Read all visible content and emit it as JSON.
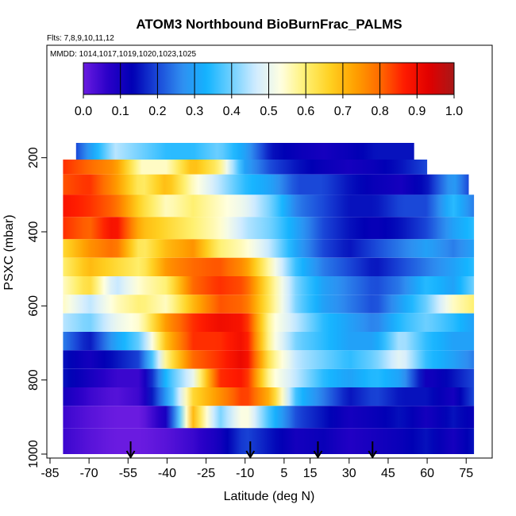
{
  "chart_data": {
    "type": "heatmap",
    "title": "ATOM3 Northbound BioBurnFrac_PALMS",
    "subtitle_flights": "Flts: 7,8,9,10,11,12",
    "subtitle_dates": "MMDD: 1014,1017,1019,1020,1023,1025",
    "xlabel": "Latitude (deg N)",
    "ylabel": "PSXC (mbar)",
    "xlim": [
      -85,
      85
    ],
    "ylim": [
      1000,
      100
    ],
    "x_ticks": [
      "-85",
      "-70",
      "-55",
      "-40",
      "-25",
      "-10",
      "5",
      "15",
      "30",
      "45",
      "60",
      "75"
    ],
    "y_ticks": [
      "200",
      "400",
      "600",
      "800",
      "1000"
    ],
    "colorbar": {
      "min": 0.0,
      "max": 1.0,
      "tick_labels": [
        "0.0",
        "0.1",
        "0.2",
        "0.3",
        "0.4",
        "0.5",
        "0.6",
        "0.7",
        "0.8",
        "0.9",
        "1.0"
      ],
      "colors": [
        "#6a1be0",
        "#2a00c8",
        "#0000b4",
        "#1a48d8",
        "#2f8ef0",
        "#14b4ff",
        "#70d0ff",
        "#d2ecff",
        "#ffffe0",
        "#fff070",
        "#ffd020",
        "#ffa000",
        "#ff6a00",
        "#ff1a00",
        "#e00000",
        "#a81818"
      ]
    },
    "grid": false,
    "vertical_profile_markers_lat": [
      -54,
      -8,
      18,
      39
    ],
    "bands": [
      {
        "p_top": 160,
        "p_bot": 205,
        "x": [
          -75,
          -60,
          -50,
          -40,
          -30,
          -20,
          -10,
          0,
          10,
          20,
          30,
          40,
          55
        ],
        "v": [
          0.2,
          0.45,
          0.4,
          0.35,
          0.35,
          0.4,
          0.3,
          0.15,
          0.12,
          0.1,
          0.12,
          0.15,
          0.15
        ]
      },
      {
        "p_top": 205,
        "p_bot": 245,
        "x": [
          -80,
          -70,
          -60,
          -50,
          -40,
          -30,
          -20,
          -10,
          0,
          10,
          20,
          30,
          40,
          50,
          60
        ],
        "v": [
          0.85,
          0.8,
          0.75,
          0.55,
          0.55,
          0.7,
          0.6,
          0.3,
          0.2,
          0.15,
          0.12,
          0.1,
          0.12,
          0.15,
          0.2
        ]
      },
      {
        "p_top": 245,
        "p_bot": 300,
        "x": [
          -80,
          -70,
          -60,
          -50,
          -40,
          -30,
          -20,
          -10,
          0,
          10,
          20,
          30,
          40,
          50,
          60,
          70,
          76
        ],
        "v": [
          0.82,
          0.85,
          0.75,
          0.6,
          0.7,
          0.55,
          0.45,
          0.35,
          0.3,
          0.2,
          0.2,
          0.15,
          0.12,
          0.1,
          0.15,
          0.3,
          0.2
        ]
      },
      {
        "p_top": 300,
        "p_bot": 360,
        "x": [
          -80,
          -70,
          -60,
          -50,
          -40,
          -30,
          -20,
          -10,
          0,
          10,
          20,
          30,
          40,
          50,
          60,
          70,
          78
        ],
        "v": [
          0.88,
          0.85,
          0.8,
          0.65,
          0.55,
          0.6,
          0.55,
          0.5,
          0.4,
          0.25,
          0.2,
          0.15,
          0.15,
          0.2,
          0.2,
          0.35,
          0.25
        ]
      },
      {
        "p_top": 360,
        "p_bot": 420,
        "x": [
          -80,
          -70,
          -60,
          -50,
          -40,
          -30,
          -20,
          -10,
          0,
          10,
          20,
          30,
          40,
          50,
          60,
          70,
          78
        ],
        "v": [
          0.85,
          0.8,
          0.9,
          0.7,
          0.65,
          0.6,
          0.55,
          0.45,
          0.4,
          0.3,
          0.2,
          0.15,
          0.12,
          0.15,
          0.2,
          0.3,
          0.35
        ]
      },
      {
        "p_top": 420,
        "p_bot": 470,
        "x": [
          -80,
          -70,
          -60,
          -50,
          -40,
          -30,
          -20,
          -10,
          0,
          10,
          20,
          30,
          40,
          50,
          60,
          70,
          78
        ],
        "v": [
          0.65,
          0.75,
          0.8,
          0.6,
          0.7,
          0.75,
          0.6,
          0.55,
          0.45,
          0.3,
          0.2,
          0.15,
          0.2,
          0.25,
          0.3,
          0.25,
          0.3
        ]
      },
      {
        "p_top": 470,
        "p_bot": 520,
        "x": [
          -80,
          -70,
          -60,
          -50,
          -40,
          -30,
          -20,
          -10,
          0,
          10,
          20,
          30,
          40,
          50,
          60,
          70,
          78
        ],
        "v": [
          0.6,
          0.7,
          0.65,
          0.6,
          0.75,
          0.8,
          0.82,
          0.75,
          0.55,
          0.35,
          0.25,
          0.2,
          0.15,
          0.2,
          0.25,
          0.3,
          0.35
        ]
      },
      {
        "p_top": 520,
        "p_bot": 570,
        "x": [
          -80,
          -70,
          -60,
          -50,
          -40,
          -30,
          -20,
          -10,
          0,
          10,
          20,
          30,
          40,
          50,
          60,
          70,
          78
        ],
        "v": [
          0.55,
          0.65,
          0.45,
          0.55,
          0.6,
          0.8,
          0.85,
          0.82,
          0.6,
          0.4,
          0.3,
          0.25,
          0.2,
          0.25,
          0.35,
          0.3,
          0.4
        ]
      },
      {
        "p_top": 570,
        "p_bot": 620,
        "x": [
          -80,
          -70,
          -60,
          -50,
          -40,
          -30,
          -20,
          -10,
          0,
          10,
          20,
          30,
          40,
          50,
          60,
          70,
          78
        ],
        "v": [
          0.55,
          0.45,
          0.55,
          0.6,
          0.55,
          0.7,
          0.82,
          0.8,
          0.6,
          0.4,
          0.3,
          0.25,
          0.2,
          0.3,
          0.4,
          0.55,
          0.6
        ]
      },
      {
        "p_top": 620,
        "p_bot": 670,
        "x": [
          -80,
          -70,
          -60,
          -50,
          -40,
          -30,
          -20,
          -10,
          0,
          10,
          20,
          30,
          40,
          50,
          60,
          70,
          78
        ],
        "v": [
          0.45,
          0.4,
          0.5,
          0.55,
          0.75,
          0.85,
          0.9,
          0.88,
          0.55,
          0.45,
          0.35,
          0.3,
          0.25,
          0.35,
          0.4,
          0.35,
          0.3
        ]
      },
      {
        "p_top": 670,
        "p_bot": 720,
        "x": [
          -80,
          -70,
          -60,
          -50,
          -40,
          -30,
          -20,
          -10,
          0,
          10,
          20,
          30,
          40,
          50,
          60,
          70,
          78
        ],
        "v": [
          0.25,
          0.15,
          0.3,
          0.4,
          0.7,
          0.85,
          0.85,
          0.9,
          0.55,
          0.4,
          0.35,
          0.3,
          0.3,
          0.45,
          0.35,
          0.3,
          0.3
        ]
      },
      {
        "p_top": 720,
        "p_bot": 770,
        "x": [
          -80,
          -70,
          -60,
          -50,
          -40,
          -30,
          -20,
          -10,
          0,
          10,
          20,
          30,
          40,
          50,
          60,
          70,
          78
        ],
        "v": [
          0.15,
          0.1,
          0.15,
          0.2,
          0.6,
          0.8,
          0.85,
          0.92,
          0.6,
          0.45,
          0.4,
          0.35,
          0.4,
          0.5,
          0.35,
          0.3,
          0.25
        ]
      },
      {
        "p_top": 770,
        "p_bot": 820,
        "x": [
          -80,
          -70,
          -60,
          -50,
          -40,
          -30,
          -20,
          -10,
          0,
          10,
          20,
          30,
          40,
          50,
          60,
          70,
          78
        ],
        "v": [
          0.15,
          0.1,
          0.05,
          0.05,
          0.35,
          0.5,
          0.85,
          0.88,
          0.55,
          0.45,
          0.35,
          0.3,
          0.35,
          0.3,
          0.1,
          0.15,
          0.2
        ]
      },
      {
        "p_top": 820,
        "p_bot": 870,
        "x": [
          -80,
          -70,
          -60,
          -50,
          -40,
          -30,
          -20,
          -10,
          0,
          10,
          20,
          30,
          40,
          50,
          60,
          70,
          78
        ],
        "v": [
          0.1,
          0.05,
          0.02,
          0.05,
          0.3,
          0.65,
          0.75,
          0.85,
          0.7,
          0.35,
          0.25,
          0.15,
          0.2,
          0.15,
          0.15,
          0.1,
          0.2
        ]
      },
      {
        "p_top": 870,
        "p_bot": 930,
        "x": [
          -80,
          -70,
          -60,
          -50,
          -40,
          -30,
          -20,
          -10,
          0,
          10,
          20,
          30,
          40,
          50,
          60,
          70,
          78
        ],
        "v": [
          0.05,
          0.02,
          0.0,
          0.0,
          0.1,
          0.7,
          0.4,
          0.55,
          0.35,
          0.2,
          0.15,
          0.1,
          0.12,
          0.15,
          0.1,
          0.15,
          0.12
        ]
      },
      {
        "p_top": 930,
        "p_bot": 1000,
        "x": [
          -80,
          -70,
          -60,
          -50,
          -40,
          -30,
          -20,
          -10,
          0,
          10,
          20,
          30,
          40,
          50,
          60,
          70,
          78
        ],
        "v": [
          0.05,
          0.02,
          0.0,
          0.0,
          0.02,
          0.05,
          0.1,
          0.2,
          0.15,
          0.1,
          0.12,
          0.08,
          0.1,
          0.12,
          0.15,
          0.1,
          0.15
        ]
      }
    ]
  }
}
